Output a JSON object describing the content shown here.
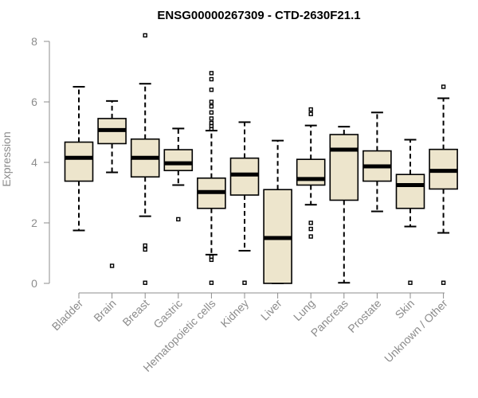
{
  "chart_data": {
    "type": "boxplot",
    "title": "ENSG00000267309 - CTD-2630F21.1",
    "xlabel": "",
    "ylabel": "Expression",
    "ylim": [
      0,
      8
    ],
    "yticks": [
      0,
      2,
      4,
      6,
      8
    ],
    "box_fill": "#ede5cc",
    "categories": [
      "Bladder",
      "Brain",
      "Breast",
      "Gastric",
      "Hematopoietic cells",
      "Kidney",
      "Liver",
      "Lung",
      "Pancreas",
      "Prostate",
      "Skin",
      "Unknown / Other"
    ],
    "boxes": [
      {
        "name": "Bladder",
        "whisker_low": 1.75,
        "q1": 3.38,
        "median": 4.15,
        "q3": 4.67,
        "whisker_high": 6.5,
        "outliers": []
      },
      {
        "name": "Brain",
        "whisker_low": 3.67,
        "q1": 4.62,
        "median": 5.07,
        "q3": 5.45,
        "whisker_high": 6.03,
        "outliers": [
          0.58
        ]
      },
      {
        "name": "Breast",
        "whisker_low": 2.22,
        "q1": 3.52,
        "median": 4.15,
        "q3": 4.77,
        "whisker_high": 6.6,
        "outliers": [
          8.2,
          1.25,
          1.12,
          0.02
        ]
      },
      {
        "name": "Gastric",
        "whisker_low": 3.25,
        "q1": 3.73,
        "median": 3.97,
        "q3": 4.42,
        "whisker_high": 5.12,
        "outliers": [
          2.12
        ]
      },
      {
        "name": "Hematopoietic cells",
        "whisker_low": 0.95,
        "q1": 2.48,
        "median": 3.02,
        "q3": 3.48,
        "whisker_high": 5.05,
        "outliers": [
          6.95,
          6.75,
          6.4,
          6.0,
          5.85,
          5.65,
          5.45,
          5.3,
          5.2,
          5.1,
          0.88,
          0.78,
          0.02
        ]
      },
      {
        "name": "Kidney",
        "whisker_low": 1.08,
        "q1": 2.92,
        "median": 3.6,
        "q3": 4.14,
        "whisker_high": 5.33,
        "outliers": [
          0.02
        ]
      },
      {
        "name": "Liver",
        "whisker_low": 0.0,
        "q1": 0.0,
        "median": 1.5,
        "q3": 3.1,
        "whisker_high": 4.72,
        "outliers": []
      },
      {
        "name": "Lung",
        "whisker_low": 2.6,
        "q1": 3.25,
        "median": 3.45,
        "q3": 4.1,
        "whisker_high": 5.22,
        "outliers": [
          5.75,
          5.6,
          2.0,
          1.8,
          1.55
        ]
      },
      {
        "name": "Pancreas",
        "whisker_low": 0.02,
        "q1": 2.75,
        "median": 4.42,
        "q3": 4.92,
        "whisker_high": 5.18,
        "outliers": []
      },
      {
        "name": "Prostate",
        "whisker_low": 2.38,
        "q1": 3.38,
        "median": 3.87,
        "q3": 4.38,
        "whisker_high": 5.65,
        "outliers": []
      },
      {
        "name": "Skin",
        "whisker_low": 1.88,
        "q1": 2.48,
        "median": 3.25,
        "q3": 3.6,
        "whisker_high": 4.75,
        "outliers": [
          0.02
        ]
      },
      {
        "name": "Unknown / Other",
        "whisker_low": 1.67,
        "q1": 3.12,
        "median": 3.72,
        "q3": 4.43,
        "whisker_high": 6.12,
        "outliers": [
          6.5,
          0.02
        ]
      }
    ]
  }
}
